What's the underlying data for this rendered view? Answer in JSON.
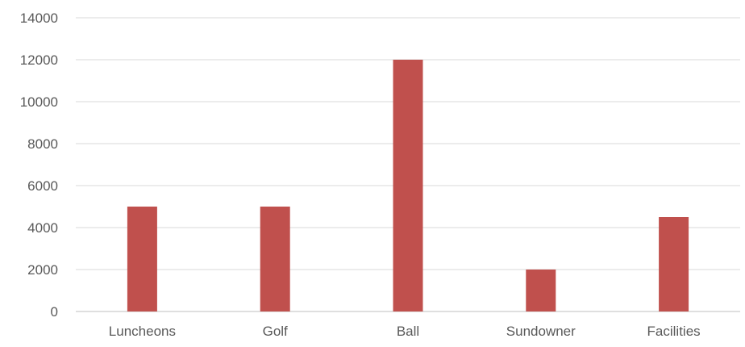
{
  "chart_data": {
    "type": "bar",
    "categories": [
      "Luncheons",
      "Golf",
      "Ball",
      "Sundowner",
      "Facilities"
    ],
    "series": [
      {
        "values": [
          5000,
          5000,
          12000,
          2000,
          4500
        ]
      }
    ],
    "yticks": [
      "0",
      "2000",
      "4000",
      "6000",
      "8000",
      "10000",
      "12000",
      "14000"
    ],
    "ylim": [
      0,
      14000
    ],
    "grid": true,
    "legend": "none",
    "colors": {
      "bar": "#c0504d",
      "grid": "#d9d9d9",
      "axis": "#bfbfbf",
      "text": "#595959"
    }
  }
}
